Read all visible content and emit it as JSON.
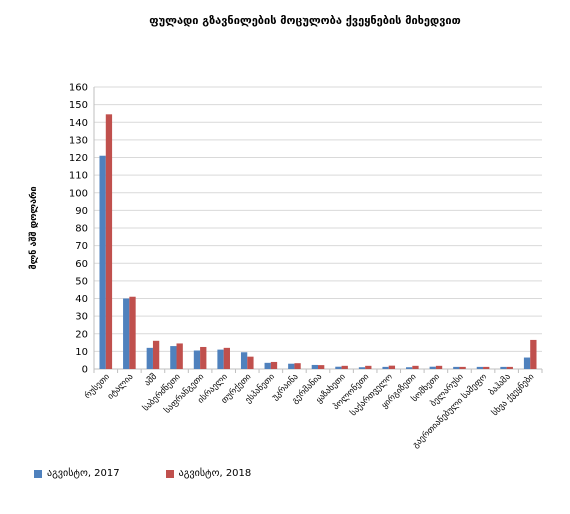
{
  "chart_data": {
    "type": "bar",
    "title": "ფულადი გზავნილების მოცულობა ქვეყნების მიხედვით",
    "ylabel": "მლნ აშშ დოლარი",
    "xlabel": "",
    "ylim": [
      0,
      160
    ],
    "yticks": [
      0,
      10,
      20,
      30,
      40,
      50,
      60,
      70,
      80,
      90,
      100,
      110,
      120,
      130,
      140,
      150,
      160
    ],
    "grid": true,
    "legend_position": "bottom-left",
    "categories": [
      "რუსეთი",
      "იტალია",
      "აშშ",
      "საბერძნეთი",
      "საფრანგეთი",
      "ისრაელი",
      "თურქეთი",
      "ესპანეთი",
      "უკრაინა",
      "გერმანია",
      "ყაზახეთი",
      "პოლონეთი",
      "საქართველო",
      "ყირგიზეთი",
      "სომხეთი",
      "ბელარუსი",
      "გაერთიანებული სამეფო",
      "ბაჰამა",
      "სხვა ქვეყნები"
    ],
    "series": [
      {
        "name": "აგვისტო, 2017",
        "color": "#4f81bd",
        "values": [
          121,
          40,
          12,
          13,
          10.5,
          11,
          9.5,
          3.5,
          3,
          2.3,
          1.3,
          1,
          1.2,
          1,
          1.3,
          1.2,
          1.2,
          1.2,
          6.5
        ]
      },
      {
        "name": "აგვისტო, 2018",
        "color": "#c0504d",
        "values": [
          144.5,
          41,
          16,
          14.5,
          12.5,
          12,
          7,
          4,
          3.3,
          2.2,
          1.8,
          1.8,
          1.9,
          1.8,
          1.8,
          1.2,
          1.2,
          1.2,
          16.5
        ]
      }
    ]
  }
}
